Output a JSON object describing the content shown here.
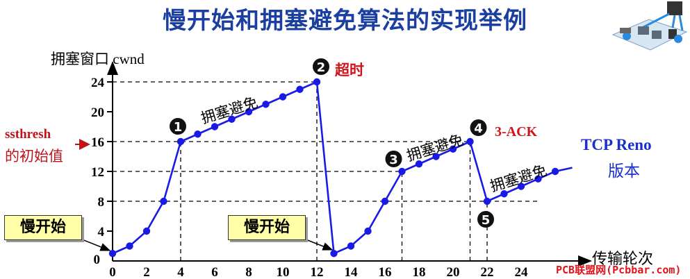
{
  "title": "慢开始和拥塞避免算法的实现举例",
  "chart_data": {
    "type": "line",
    "ylabel": "拥塞窗口  cwnd",
    "xlabel": "传输轮次",
    "xlim": [
      0,
      26
    ],
    "ylim": [
      0,
      26
    ],
    "x_ticks": [
      0,
      2,
      4,
      6,
      8,
      10,
      12,
      14,
      16,
      18,
      20,
      22,
      24
    ],
    "y_ticks": [
      0,
      4,
      8,
      12,
      16,
      20,
      24
    ],
    "x": [
      0,
      1,
      2,
      3,
      4,
      5,
      6,
      7,
      8,
      9,
      10,
      11,
      12,
      13,
      14,
      15,
      16,
      17,
      18,
      19,
      20,
      21,
      22,
      23,
      24,
      25,
      26
    ],
    "y": [
      1,
      2,
      4,
      8,
      16,
      17,
      18,
      19,
      20,
      21,
      22,
      23,
      24,
      1,
      2,
      4,
      8,
      12,
      13,
      14,
      15,
      16,
      8,
      9,
      10,
      11,
      12
    ],
    "line_end": [
      27,
      12.5
    ],
    "dashed_levels": [
      24,
      16,
      12,
      8
    ],
    "series_color": "#1a1ae6",
    "markers": [
      {
        "num": "1",
        "x": 4,
        "y": 16
      },
      {
        "num": "2",
        "x": 12,
        "y": 24
      },
      {
        "num": "3",
        "x": 17,
        "y": 12
      },
      {
        "num": "4",
        "x": 21,
        "y": 16
      },
      {
        "num": "5",
        "x": 22,
        "y": 8
      }
    ],
    "annotations": {
      "timeout": "超时",
      "three_ack": "3-ACK",
      "avoid": "拥塞避免",
      "slow_start": "慢开始",
      "ssthresh": "ssthresh",
      "ssthresh_sub": "的初始值",
      "reno_line1": "TCP Reno",
      "reno_line2": "版本"
    }
  },
  "watermark": "PCB联盟网(Pcbbar.com)"
}
